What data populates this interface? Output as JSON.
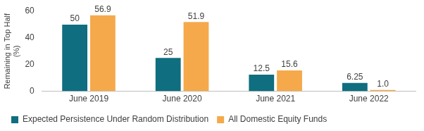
{
  "chart_data": {
    "type": "bar",
    "y_label": "Remaining in Top Half (%)",
    "categories": [
      "June 2019",
      "June 2020",
      "June 2021",
      "June 2022"
    ],
    "series": [
      {
        "name": "Expected Persistence Under Random Distribution",
        "color": "#0f6e7f",
        "values": [
          50,
          25,
          12.5,
          6.25
        ]
      },
      {
        "name": "All Domestic Equity Funds",
        "color": "#f5a94b",
        "values": [
          56.9,
          51.9,
          15.6,
          1.0
        ],
        "value_labels": [
          "56.9",
          "51.9",
          "15.6",
          "1.0"
        ]
      }
    ],
    "ylim": [
      0,
      60
    ],
    "yticks": [
      0,
      20,
      40,
      60
    ],
    "grid": false,
    "legend": "bottom",
    "data_labels": true
  }
}
